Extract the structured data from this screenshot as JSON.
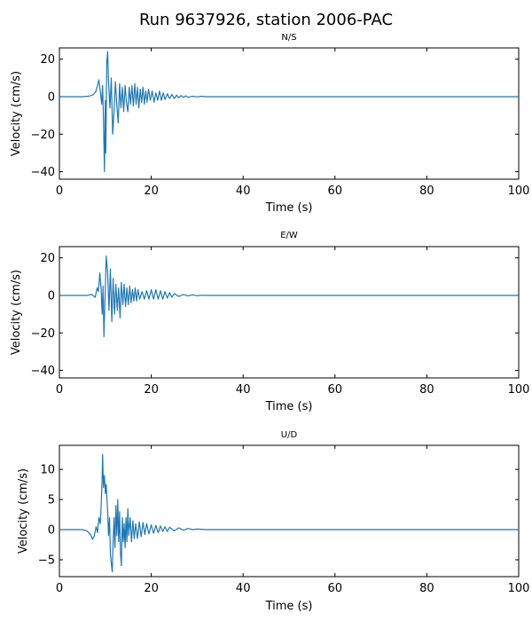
{
  "figure": {
    "title": "Run 9637926, station 2006-PAC",
    "line_color": "#1f77b4"
  },
  "chart_data": [
    {
      "type": "line",
      "title": "N/S",
      "xlabel": "Time (s)",
      "ylabel": "Velocity (cm/s)",
      "xlim": [
        0,
        100
      ],
      "ylim": [
        -44,
        26
      ],
      "xticks": [
        0,
        20,
        40,
        60,
        80,
        100
      ],
      "yticks": [
        -40,
        -20,
        0,
        20
      ],
      "series": [
        {
          "name": "N/S",
          "points": [
            [
              0,
              0
            ],
            [
              5,
              0
            ],
            [
              6.5,
              0.3
            ],
            [
              7.3,
              1
            ],
            [
              7.9,
              2.5
            ],
            [
              8.3,
              6
            ],
            [
              8.6,
              9
            ],
            [
              8.9,
              3
            ],
            [
              9.2,
              -4
            ],
            [
              9.4,
              6
            ],
            [
              9.6,
              -12
            ],
            [
              9.8,
              -40
            ],
            [
              10.0,
              -2
            ],
            [
              10.1,
              -30
            ],
            [
              10.3,
              18
            ],
            [
              10.5,
              24
            ],
            [
              10.7,
              8
            ],
            [
              11.0,
              -6
            ],
            [
              11.3,
              10
            ],
            [
              11.6,
              -20
            ],
            [
              11.9,
              -8
            ],
            [
              12.2,
              8
            ],
            [
              12.5,
              -5
            ],
            [
              12.8,
              -14
            ],
            [
              13.1,
              7
            ],
            [
              13.4,
              -6
            ],
            [
              13.7,
              5
            ],
            [
              14.0,
              -8
            ],
            [
              14.3,
              6
            ],
            [
              14.6,
              -3
            ],
            [
              14.9,
              -8
            ],
            [
              15.2,
              5
            ],
            [
              15.5,
              -4
            ],
            [
              15.8,
              6
            ],
            [
              16.1,
              -5
            ],
            [
              16.4,
              7
            ],
            [
              16.7,
              -4
            ],
            [
              17.0,
              5
            ],
            [
              17.3,
              -6
            ],
            [
              17.6,
              4
            ],
            [
              17.9,
              -3
            ],
            [
              18.2,
              5
            ],
            [
              18.5,
              -4
            ],
            [
              18.8,
              3
            ],
            [
              19.1,
              -3
            ],
            [
              19.4,
              4
            ],
            [
              19.8,
              -2
            ],
            [
              20.2,
              3
            ],
            [
              20.6,
              -3
            ],
            [
              21.0,
              2
            ],
            [
              21.4,
              -2
            ],
            [
              21.8,
              3
            ],
            [
              22.2,
              -2
            ],
            [
              22.6,
              2
            ],
            [
              23.0,
              -1.5
            ],
            [
              23.5,
              1.5
            ],
            [
              24,
              -1
            ],
            [
              24.5,
              1.2
            ],
            [
              25,
              -1
            ],
            [
              25.5,
              0.8
            ],
            [
              26,
              -0.6
            ],
            [
              26.5,
              0.6
            ],
            [
              27,
              -0.4
            ],
            [
              27.5,
              0.4
            ],
            [
              28,
              -0.3
            ],
            [
              29,
              0.2
            ],
            [
              30,
              -0.1
            ],
            [
              31,
              0.2
            ],
            [
              32,
              0
            ],
            [
              40,
              0
            ],
            [
              60,
              0
            ],
            [
              80,
              0
            ],
            [
              100,
              0
            ]
          ]
        }
      ]
    },
    {
      "type": "line",
      "title": "E/W",
      "xlabel": "Time (s)",
      "ylabel": "Velocity (cm/s)",
      "xlim": [
        0,
        100
      ],
      "ylim": [
        -44,
        26
      ],
      "xticks": [
        0,
        20,
        40,
        60,
        80,
        100
      ],
      "yticks": [
        -40,
        -20,
        0,
        20
      ],
      "series": [
        {
          "name": "E/W",
          "points": [
            [
              0,
              0
            ],
            [
              6,
              0
            ],
            [
              7,
              0.5
            ],
            [
              7.8,
              -1
            ],
            [
              8.2,
              4
            ],
            [
              8.5,
              2
            ],
            [
              8.8,
              12
            ],
            [
              9.1,
              3
            ],
            [
              9.3,
              -10
            ],
            [
              9.5,
              5
            ],
            [
              9.7,
              -22
            ],
            [
              9.9,
              -4
            ],
            [
              10.2,
              21
            ],
            [
              10.5,
              12
            ],
            [
              10.8,
              -8
            ],
            [
              11.1,
              14
            ],
            [
              11.4,
              -14
            ],
            [
              11.7,
              9
            ],
            [
              12.0,
              -10
            ],
            [
              12.3,
              6
            ],
            [
              12.6,
              -8
            ],
            [
              12.9,
              4
            ],
            [
              13.2,
              -12
            ],
            [
              13.5,
              7
            ],
            [
              13.8,
              -5
            ],
            [
              14.1,
              6
            ],
            [
              14.4,
              -6
            ],
            [
              14.7,
              4
            ],
            [
              15.0,
              -5
            ],
            [
              15.3,
              5
            ],
            [
              15.6,
              -4
            ],
            [
              15.9,
              3
            ],
            [
              16.2,
              -3
            ],
            [
              16.5,
              4
            ],
            [
              16.8,
              -3
            ],
            [
              17.1,
              3
            ],
            [
              17.5,
              -2
            ],
            [
              18.0,
              2
            ],
            [
              18.5,
              -2
            ],
            [
              19,
              2.5
            ],
            [
              19.5,
              -2
            ],
            [
              20,
              3
            ],
            [
              20.5,
              -2
            ],
            [
              21,
              3
            ],
            [
              21.5,
              -2
            ],
            [
              22,
              2.5
            ],
            [
              22.5,
              -2
            ],
            [
              23,
              2
            ],
            [
              23.5,
              -1.5
            ],
            [
              24,
              1.5
            ],
            [
              24.5,
              -1
            ],
            [
              25,
              1
            ],
            [
              26,
              -0.6
            ],
            [
              27,
              0.5
            ],
            [
              28,
              -0.3
            ],
            [
              29,
              0.3
            ],
            [
              30,
              -0.2
            ],
            [
              31,
              0.1
            ],
            [
              32,
              0
            ],
            [
              40,
              0
            ],
            [
              60,
              0
            ],
            [
              80,
              0
            ],
            [
              100,
              0
            ]
          ]
        }
      ]
    },
    {
      "type": "line",
      "title": "U/D",
      "xlabel": "Time (s)",
      "ylabel": "Velocity (cm/s)",
      "xlim": [
        0,
        100
      ],
      "ylim": [
        -7.8,
        14
      ],
      "xticks": [
        0,
        20,
        40,
        60,
        80,
        100
      ],
      "yticks": [
        -5,
        0,
        5,
        10
      ],
      "series": [
        {
          "name": "U/D",
          "points": [
            [
              0,
              0
            ],
            [
              5,
              0
            ],
            [
              6,
              -0.2
            ],
            [
              6.8,
              -0.8
            ],
            [
              7.2,
              -1.6
            ],
            [
              7.6,
              -1.0
            ],
            [
              8.0,
              0.5
            ],
            [
              8.3,
              -0.5
            ],
            [
              8.6,
              2
            ],
            [
              8.9,
              1
            ],
            [
              9.1,
              4
            ],
            [
              9.3,
              8.5
            ],
            [
              9.4,
              12.5
            ],
            [
              9.6,
              7
            ],
            [
              9.8,
              9
            ],
            [
              10.0,
              6
            ],
            [
              10.2,
              7.5
            ],
            [
              10.5,
              3
            ],
            [
              10.7,
              -1
            ],
            [
              10.9,
              2
            ],
            [
              11.1,
              -4
            ],
            [
              11.3,
              -5.5
            ],
            [
              11.5,
              -7
            ],
            [
              11.7,
              -2
            ],
            [
              11.9,
              2
            ],
            [
              12.1,
              -3
            ],
            [
              12.3,
              4
            ],
            [
              12.5,
              -1
            ],
            [
              12.7,
              5
            ],
            [
              12.9,
              -2
            ],
            [
              13.1,
              3
            ],
            [
              13.3,
              -4
            ],
            [
              13.5,
              -6
            ],
            [
              13.7,
              2
            ],
            [
              13.9,
              -2
            ],
            [
              14.1,
              1
            ],
            [
              14.3,
              -3
            ],
            [
              14.5,
              2
            ],
            [
              14.7,
              -2
            ],
            [
              14.9,
              3.5
            ],
            [
              15.1,
              -1
            ],
            [
              15.4,
              2
            ],
            [
              15.7,
              -2
            ],
            [
              16.0,
              1.5
            ],
            [
              16.3,
              -1.5
            ],
            [
              16.6,
              1
            ],
            [
              17.0,
              -1.5
            ],
            [
              17.4,
              1.3
            ],
            [
              17.8,
              -1.2
            ],
            [
              18.2,
              1.2
            ],
            [
              18.6,
              -0.8
            ],
            [
              19,
              1
            ],
            [
              19.5,
              -0.7
            ],
            [
              20,
              0.8
            ],
            [
              20.5,
              -0.6
            ],
            [
              21,
              0.7
            ],
            [
              21.5,
              -0.5
            ],
            [
              22,
              0.6
            ],
            [
              22.5,
              -0.3
            ],
            [
              23,
              0.5
            ],
            [
              23.5,
              -0.3
            ],
            [
              24,
              0.4
            ],
            [
              25,
              -0.2
            ],
            [
              26,
              0.3
            ],
            [
              27,
              -0.1
            ],
            [
              28,
              0.2
            ],
            [
              29,
              0
            ],
            [
              30,
              0.1
            ],
            [
              32,
              0
            ],
            [
              40,
              0
            ],
            [
              60,
              0
            ],
            [
              80,
              0
            ],
            [
              100,
              0
            ]
          ]
        }
      ]
    }
  ]
}
